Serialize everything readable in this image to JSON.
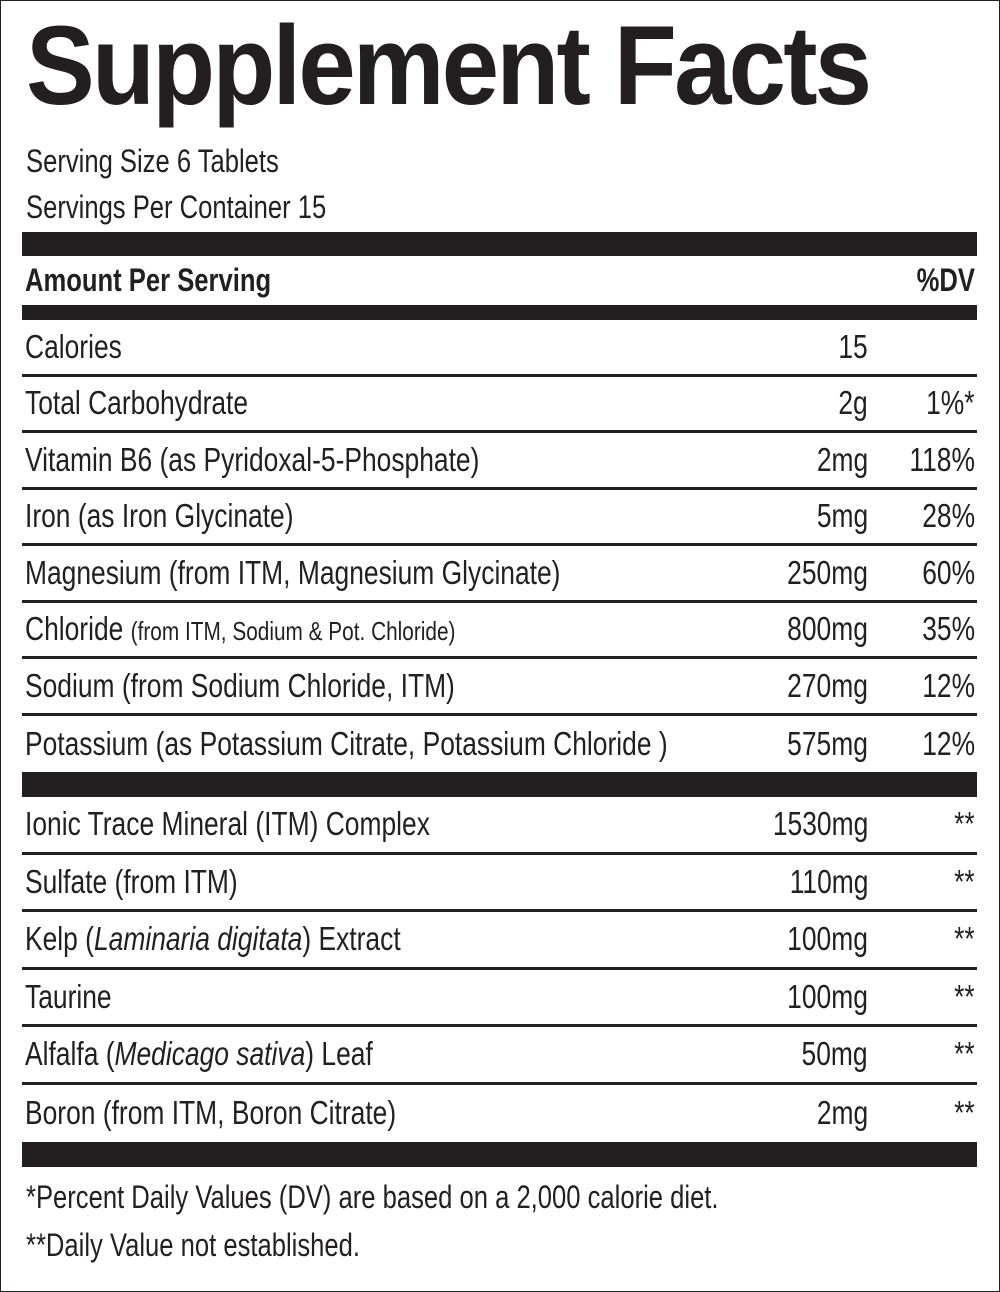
{
  "title": "Supplement Facts",
  "serving_size": "Serving Size 6 Tablets",
  "servings_per_container": "Servings Per Container 15",
  "header": {
    "left": "Amount Per Serving",
    "right": "%DV"
  },
  "sections": [
    {
      "rows": [
        {
          "name": [
            {
              "text": "Calories"
            }
          ],
          "amount": "15"
        },
        {
          "name": [
            {
              "text": "Total Carbohydrate"
            }
          ],
          "amount": "2g",
          "dv": "1%*"
        },
        {
          "name": [
            {
              "text": "Vitamin B6 (as Pyridoxal-5-Phosphate)"
            }
          ],
          "amount": "2mg",
          "dv": "118%"
        },
        {
          "name": [
            {
              "text": "Iron (as Iron Glycinate)"
            }
          ],
          "amount": "5mg",
          "dv": "28%"
        },
        {
          "name": [
            {
              "text": "Magnesium (from ITM, Magnesium Glycinate)"
            }
          ],
          "amount": "250mg",
          "dv": "60%"
        },
        {
          "name": [
            {
              "text": "Chloride "
            },
            {
              "text": "(from ITM, Sodium & Pot. Chloride)",
              "small": true
            }
          ],
          "amount": "800mg",
          "dv": "35%"
        },
        {
          "name": [
            {
              "text": "Sodium (from Sodium Chloride, ITM)"
            }
          ],
          "amount": "270mg",
          "dv": "12%"
        },
        {
          "name": [
            {
              "text": "Potassium (as Potassium Citrate, Potassium Chloride )"
            }
          ],
          "amount": "575mg",
          "dv": "12%"
        }
      ]
    },
    {
      "rows": [
        {
          "name": [
            {
              "text": "Ionic Trace Mineral (ITM) Complex"
            }
          ],
          "amount": "1530mg",
          "dv": "**"
        },
        {
          "name": [
            {
              "text": "Sulfate (from ITM)"
            }
          ],
          "amount": "110mg",
          "dv": "**"
        },
        {
          "name": [
            {
              "text": "Kelp ("
            },
            {
              "text": "Laminaria digitata",
              "italic": true
            },
            {
              "text": ") Extract"
            }
          ],
          "amount": "100mg",
          "dv": "**"
        },
        {
          "name": [
            {
              "text": "Taurine"
            }
          ],
          "amount": "100mg",
          "dv": "**"
        },
        {
          "name": [
            {
              "text": "Alfalfa ("
            },
            {
              "text": "Medicago sativa",
              "italic": true
            },
            {
              "text": ") Leaf"
            }
          ],
          "amount": "50mg",
          "dv": "**"
        },
        {
          "name": [
            {
              "text": "Boron (from ITM, Boron Citrate)"
            }
          ],
          "amount": "2mg",
          "dv": "**"
        }
      ]
    }
  ],
  "footnotes": [
    "*Percent Daily Values (DV) are based on a 2,000 calorie diet.",
    "**Daily Value not established."
  ]
}
